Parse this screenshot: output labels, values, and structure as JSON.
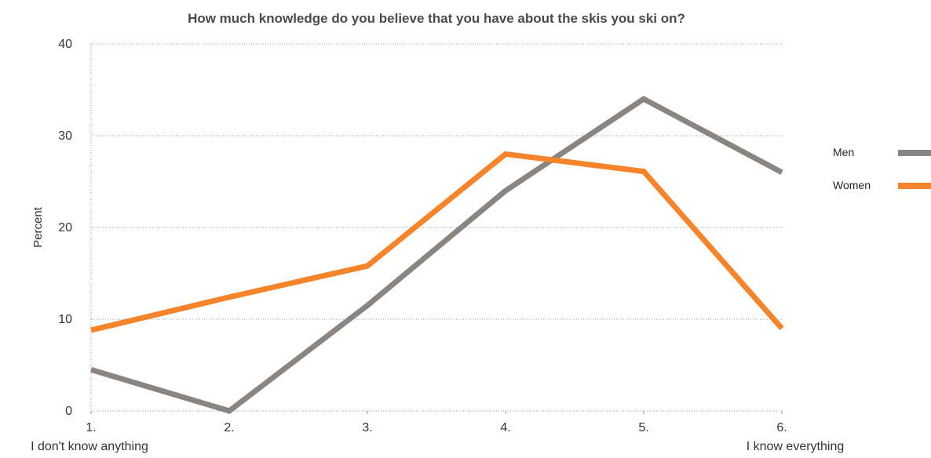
{
  "chart_data": {
    "type": "line",
    "title": "How much knowledge do you believe that you have about the skis you ski on?",
    "xlabel": "",
    "ylabel": "Percent",
    "categories": [
      "1.",
      "2.",
      "3.",
      "4.",
      "5.",
      "6."
    ],
    "x_end_labels": {
      "left": "I don't know anything",
      "right": "I know everything"
    },
    "ylim": [
      0,
      40
    ],
    "yticks": [
      0,
      10,
      20,
      30,
      40
    ],
    "grid": true,
    "legend_position": "right",
    "series": [
      {
        "name": "Men",
        "color": "#8a8580",
        "values": [
          4.5,
          0,
          11.5,
          24,
          34,
          26
        ]
      },
      {
        "name": "Women",
        "color": "#f5842b",
        "values": [
          8.8,
          12.4,
          15.8,
          28,
          26.1,
          9
        ]
      }
    ]
  }
}
